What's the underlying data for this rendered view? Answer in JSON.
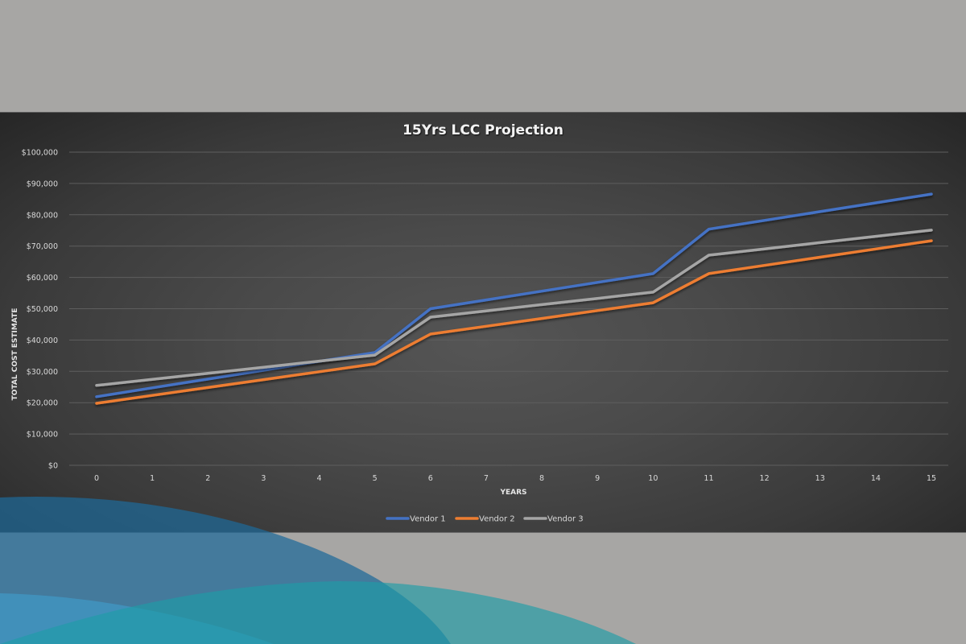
{
  "colors": {
    "page_background": "#a7a6a4",
    "chart_background": "#474747",
    "vendor1": "#4472c4",
    "vendor2": "#ed7d31",
    "vendor3": "#a5a5a5",
    "deco_dark_blue": "#1f5f85",
    "deco_blue": "#3a98c8",
    "deco_teal": "#3aa3a3"
  },
  "chart": {
    "title": "15Yrs LCC Projection",
    "xlabel": "YEARS",
    "ylabel": "TOTAL COST ESTIMATE",
    "y_ticks": [
      "$0",
      "$10,000",
      "$20,000",
      "$30,000",
      "$40,000",
      "$50,000",
      "$60,000",
      "$70,000",
      "$80,000",
      "$90,000",
      "$100,000"
    ],
    "x_ticks": [
      "0",
      "1",
      "2",
      "3",
      "4",
      "5",
      "6",
      "7",
      "8",
      "9",
      "10",
      "11",
      "12",
      "13",
      "14",
      "15"
    ],
    "legend": [
      "Vendor 1",
      "Vendor 2",
      "Vendor 3"
    ]
  },
  "chart_data": {
    "type": "line",
    "title": "15Yrs LCC Projection",
    "xlabel": "YEARS",
    "ylabel": "TOTAL COST ESTIMATE",
    "x": [
      0,
      1,
      2,
      3,
      4,
      5,
      6,
      7,
      8,
      9,
      10,
      11,
      12,
      13,
      14,
      15
    ],
    "ylim": [
      0,
      100000
    ],
    "y_tick_step": 10000,
    "y_format": "currency_usd",
    "grid": true,
    "legend_position": "bottom",
    "series": [
      {
        "name": "Vendor 1",
        "color": "#4472c4",
        "values": [
          21900,
          24720,
          27540,
          30360,
          33180,
          36000,
          50000,
          52800,
          55600,
          58400,
          61200,
          75400,
          78200,
          81000,
          83800,
          86600
        ]
      },
      {
        "name": "Vendor 2",
        "color": "#ed7d31",
        "values": [
          19800,
          22320,
          24840,
          27360,
          29880,
          32400,
          41900,
          44400,
          46900,
          49400,
          51900,
          61200,
          63825,
          66450,
          69075,
          71700
        ]
      },
      {
        "name": "Vendor 3",
        "color": "#a5a5a5",
        "values": [
          25500,
          27440,
          29380,
          31320,
          33260,
          35200,
          47300,
          49300,
          51300,
          53300,
          55300,
          67100,
          69100,
          71100,
          73100,
          75100
        ]
      }
    ]
  }
}
